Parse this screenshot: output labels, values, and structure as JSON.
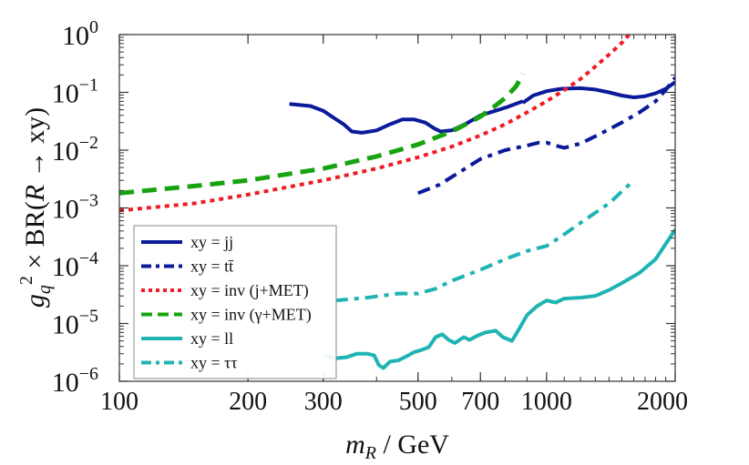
{
  "chart_data": {
    "type": "line",
    "title": "",
    "xlabel": "m_R / GeV",
    "ylabel": "g_q^2 × BR(R → xy)",
    "xscale": "log",
    "yscale": "log",
    "xlim": [
      100,
      2000
    ],
    "ylim": [
      1e-06,
      1
    ],
    "x_ticks": [
      {
        "value": 100,
        "label": "100"
      },
      {
        "value": 200,
        "label": "200"
      },
      {
        "value": 300,
        "label": "300"
      },
      {
        "value": 500,
        "label": "500"
      },
      {
        "value": 700,
        "label": "700"
      },
      {
        "value": 1000,
        "label": "1000"
      },
      {
        "value": 2000,
        "label": "2000"
      }
    ],
    "y_ticks": [
      {
        "value": 1e-06,
        "base": "10",
        "exp": "−6"
      },
      {
        "value": 1e-05,
        "base": "10",
        "exp": "−5"
      },
      {
        "value": 0.0001,
        "base": "10",
        "exp": "−4"
      },
      {
        "value": 0.001,
        "base": "10",
        "exp": "−3"
      },
      {
        "value": 0.01,
        "base": "10",
        "exp": "−2"
      },
      {
        "value": 0.1,
        "base": "10",
        "exp": "−1"
      },
      {
        "value": 1,
        "base": "10",
        "exp": "0"
      }
    ],
    "legend_position": "bottom-left",
    "series": [
      {
        "name": "xy = jj",
        "color": "#0a1a9a",
        "style": "solid",
        "width": 4,
        "points": [
          [
            250,
            0.063
          ],
          [
            280,
            0.058
          ],
          [
            300,
            0.048
          ],
          [
            320,
            0.035
          ],
          [
            335,
            0.028
          ],
          [
            350,
            0.021
          ],
          [
            370,
            0.02
          ],
          [
            400,
            0.022
          ],
          [
            430,
            0.028
          ],
          [
            460,
            0.034
          ],
          [
            490,
            0.034
          ],
          [
            520,
            0.03
          ],
          [
            545,
            0.024
          ],
          [
            565,
            0.021
          ],
          [
            600,
            0.022
          ],
          [
            650,
            0.029
          ],
          [
            700,
            0.04
          ],
          [
            760,
            0.048
          ],
          [
            810,
            0.056
          ],
          [
            880,
            0.07
          ]
        ]
      },
      {
        "name": "xy = jj",
        "color": "#0a1a9a",
        "style": "solid",
        "width": 4,
        "points": [
          [
            880,
            0.066
          ],
          [
            930,
            0.088
          ],
          [
            1000,
            0.105
          ],
          [
            1080,
            0.115
          ],
          [
            1200,
            0.118
          ],
          [
            1300,
            0.112
          ],
          [
            1400,
            0.1
          ],
          [
            1500,
            0.088
          ],
          [
            1600,
            0.082
          ],
          [
            1700,
            0.086
          ],
          [
            1800,
            0.096
          ],
          [
            1900,
            0.115
          ],
          [
            2000,
            0.15
          ]
        ]
      },
      {
        "name": "xy = tt̄",
        "color": "#0a1a9a",
        "style": "dashdot",
        "width": 4,
        "points": [
          [
            500,
            0.0018
          ],
          [
            560,
            0.0025
          ],
          [
            620,
            0.004
          ],
          [
            700,
            0.007
          ],
          [
            800,
            0.01
          ],
          [
            900,
            0.012
          ],
          [
            960,
            0.0135
          ],
          [
            1000,
            0.0135
          ],
          [
            1050,
            0.012
          ],
          [
            1100,
            0.011
          ],
          [
            1200,
            0.013
          ],
          [
            1350,
            0.02
          ],
          [
            1500,
            0.03
          ],
          [
            1650,
            0.045
          ],
          [
            1800,
            0.07
          ],
          [
            1900,
            0.11
          ],
          [
            2000,
            0.18
          ]
        ]
      },
      {
        "name": "xy = inv (j+MET)",
        "color": "#ee1c25",
        "style": "dotted",
        "width": 4,
        "points": [
          [
            100,
            0.0009
          ],
          [
            150,
            0.0012
          ],
          [
            200,
            0.0017
          ],
          [
            300,
            0.003
          ],
          [
            400,
            0.0048
          ],
          [
            500,
            0.0075
          ],
          [
            600,
            0.0115
          ],
          [
            700,
            0.018
          ],
          [
            800,
            0.028
          ],
          [
            900,
            0.045
          ],
          [
            1000,
            0.07
          ],
          [
            1100,
            0.11
          ],
          [
            1200,
            0.17
          ],
          [
            1300,
            0.28
          ],
          [
            1400,
            0.45
          ],
          [
            1500,
            0.72
          ],
          [
            1560,
            1.0
          ]
        ]
      },
      {
        "name": "xy = inv (γ+MET)",
        "color": "#17a30f",
        "style": "dashed",
        "width": 5,
        "points": [
          [
            100,
            0.0018
          ],
          [
            150,
            0.0024
          ],
          [
            200,
            0.003
          ],
          [
            300,
            0.0048
          ],
          [
            400,
            0.0078
          ],
          [
            500,
            0.0125
          ],
          [
            600,
            0.021
          ],
          [
            700,
            0.038
          ],
          [
            750,
            0.055
          ],
          [
            800,
            0.08
          ],
          [
            850,
            0.13
          ],
          [
            880,
            0.21
          ]
        ]
      },
      {
        "name": "xy = ll",
        "color": "#1fb3b3",
        "style": "solid",
        "width": 4,
        "points": [
          [
            300,
            2.8e-06
          ],
          [
            320,
            2.5e-06
          ],
          [
            340,
            2.6e-06
          ],
          [
            360,
            3e-06
          ],
          [
            380,
            3e-06
          ],
          [
            395,
            2.8e-06
          ],
          [
            405,
            1.9e-06
          ],
          [
            415,
            1.7e-06
          ],
          [
            430,
            2.2e-06
          ],
          [
            450,
            2.3e-06
          ],
          [
            470,
            2.7e-06
          ],
          [
            490,
            3.2e-06
          ],
          [
            510,
            3.5e-06
          ],
          [
            530,
            3.9e-06
          ],
          [
            550,
            5.8e-06
          ],
          [
            570,
            6.5e-06
          ],
          [
            590,
            5.2e-06
          ],
          [
            610,
            4.6e-06
          ],
          [
            640,
            5.8e-06
          ],
          [
            660,
            5.2e-06
          ],
          [
            690,
            6.2e-06
          ],
          [
            720,
            7e-06
          ],
          [
            760,
            7.5e-06
          ],
          [
            790,
            5.8e-06
          ],
          [
            830,
            5e-06
          ],
          [
            870,
            9e-06
          ],
          [
            900,
            1.4e-05
          ],
          [
            950,
            2e-05
          ],
          [
            1000,
            2.5e-05
          ],
          [
            1050,
            2.3e-05
          ],
          [
            1100,
            2.7e-05
          ],
          [
            1200,
            2.8e-05
          ],
          [
            1300,
            3e-05
          ],
          [
            1400,
            3.8e-05
          ],
          [
            1500,
            5e-05
          ],
          [
            1650,
            7.5e-05
          ],
          [
            1800,
            0.00013
          ],
          [
            2000,
            0.00042
          ]
        ]
      },
      {
        "name": "xy = ττ",
        "color": "#1fb3b3",
        "style": "dashdot",
        "width": 4,
        "points": [
          [
            320,
            2.5e-05
          ],
          [
            380,
            2.8e-05
          ],
          [
            450,
            3.3e-05
          ],
          [
            500,
            3.3e-05
          ],
          [
            550,
            4e-05
          ],
          [
            600,
            5.5e-05
          ],
          [
            700,
            8.5e-05
          ],
          [
            800,
            0.00013
          ],
          [
            900,
            0.00018
          ],
          [
            1000,
            0.00022
          ],
          [
            1100,
            0.00035
          ],
          [
            1200,
            0.00055
          ],
          [
            1400,
            0.0012
          ],
          [
            1600,
            0.003
          ]
        ]
      }
    ],
    "legend": [
      {
        "label": "xy = jj",
        "color": "#0a1a9a",
        "style": "solid"
      },
      {
        "label": "xy = tt̄",
        "color": "#0a1a9a",
        "style": "dashdot"
      },
      {
        "label": "xy = inv (j+MET)",
        "color": "#ee1c25",
        "style": "dotted"
      },
      {
        "label": "xy = inv (γ+MET)",
        "color": "#17a30f",
        "style": "dashed"
      },
      {
        "label": "xy = ll",
        "color": "#1fb3b3",
        "style": "solid"
      },
      {
        "label": "xy = ττ",
        "color": "#1fb3b3",
        "style": "dashdot"
      }
    ]
  }
}
